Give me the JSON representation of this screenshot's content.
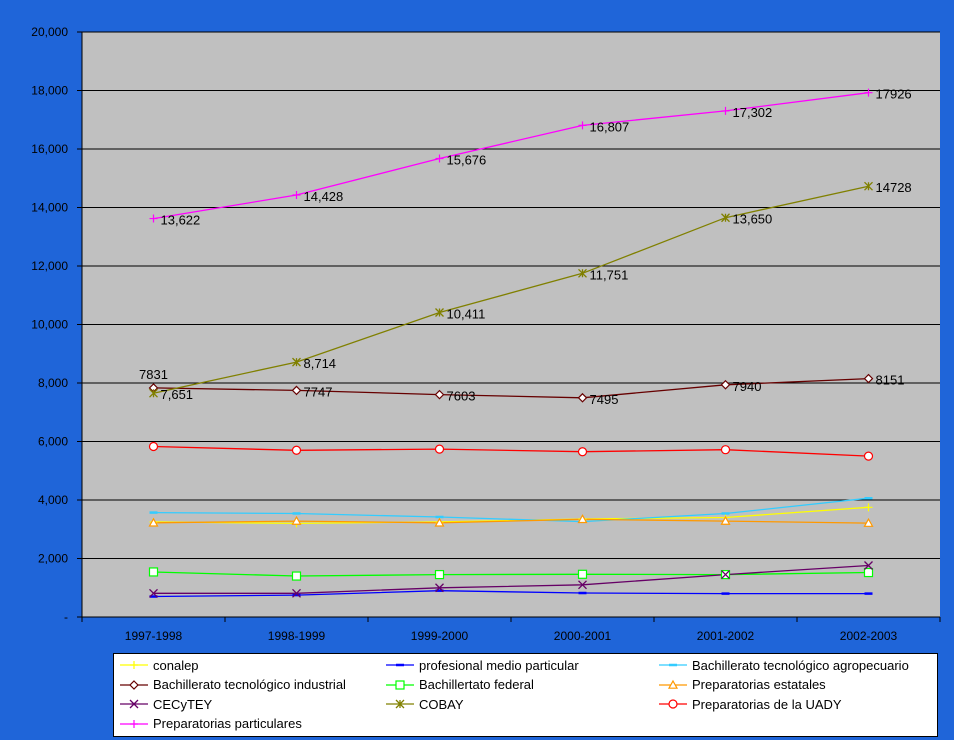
{
  "chart_data": {
    "type": "line",
    "categories": [
      "1997-1998",
      "1998-1999",
      "1999-2000",
      "2000-2001",
      "2001-2002",
      "2002-2003"
    ],
    "ylim": [
      0,
      20000
    ],
    "yticks": [
      "-",
      "2,000",
      "4,000",
      "6,000",
      "8,000",
      "10,000",
      "12,000",
      "14,000",
      "16,000",
      "18,000",
      "20,000"
    ],
    "ytick_values": [
      0,
      2000,
      4000,
      6000,
      8000,
      10000,
      12000,
      14000,
      16000,
      18000,
      20000
    ],
    "grid": true,
    "legend_position": "bottom",
    "series": [
      {
        "name": "conalep",
        "color": "#ffff00",
        "marker": "plus",
        "values": [
          3250,
          3200,
          3250,
          3350,
          3400,
          3750
        ],
        "labels": []
      },
      {
        "name": "profesional medio particular",
        "color": "#0000ff",
        "marker": "dash",
        "values": [
          700,
          750,
          900,
          820,
          800,
          800
        ],
        "labels": []
      },
      {
        "name": "Bachillerato tecnológico agropecuario",
        "color": "#33ccff",
        "marker": "dash",
        "values": [
          3570,
          3540,
          3420,
          3260,
          3540,
          4060
        ],
        "labels": []
      },
      {
        "name": "Bachillerato tecnológico industrial",
        "color": "#660000",
        "marker": "diamond",
        "values": [
          7831,
          7747,
          7603,
          7495,
          7940,
          8151
        ],
        "labels": [
          "7831",
          "7747",
          "7603",
          "7495",
          "7940",
          "8151"
        ]
      },
      {
        "name": "Bachillertato federal",
        "color": "#00ff00",
        "marker": "square",
        "values": [
          1540,
          1400,
          1450,
          1460,
          1450,
          1520
        ],
        "labels": []
      },
      {
        "name": "Preparatorias estatales",
        "color": "#ff9900",
        "marker": "triangle",
        "values": [
          3220,
          3280,
          3220,
          3340,
          3280,
          3210
        ],
        "labels": []
      },
      {
        "name": "CECyTEY",
        "color": "#660066",
        "marker": "x",
        "values": [
          810,
          810,
          1000,
          1100,
          1450,
          1760
        ],
        "labels": []
      },
      {
        "name": "COBAY",
        "color": "#808000",
        "marker": "star",
        "values": [
          7651,
          8714,
          10411,
          11751,
          13650,
          14728
        ],
        "labels": [
          "7,651",
          "8,714",
          "10,411",
          "11,751",
          "13,650",
          "14728"
        ]
      },
      {
        "name": "Preparatorias de la UADY",
        "color": "#ff0000",
        "marker": "circle",
        "values": [
          5830,
          5700,
          5740,
          5650,
          5720,
          5500
        ],
        "labels": []
      },
      {
        "name": "Preparatorias particulares",
        "color": "#ff00ff",
        "marker": "plus",
        "values": [
          13622,
          14428,
          15676,
          16807,
          17302,
          17926
        ],
        "labels": [
          "13,622",
          "14,428",
          "15,676",
          "16,807",
          "17,302",
          "17926"
        ]
      }
    ]
  }
}
